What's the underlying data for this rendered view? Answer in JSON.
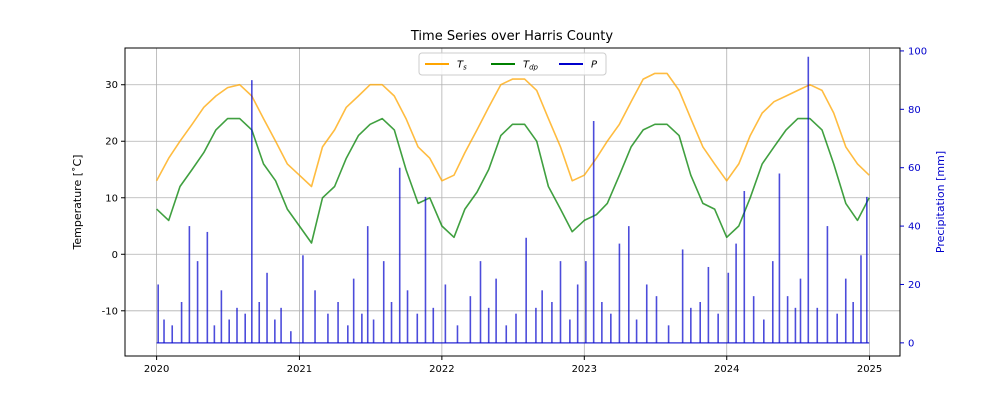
{
  "chart_data": {
    "type": "line",
    "title": "Time Series over Harris County",
    "xlabel": "",
    "ylabel": "Temperature [$^\\circ$C]",
    "ylabel_display": "Temperature [˚C]",
    "y2label": "Precipitation [mm]",
    "xlim": [
      "2019-10-12",
      "2025-03-20"
    ],
    "ylim": [
      -18,
      36.5
    ],
    "y2lim": [
      -4.5,
      101
    ],
    "x_ticks": [
      "2020",
      "2021",
      "2022",
      "2023",
      "2024",
      "2025"
    ],
    "y_ticks": [
      -10,
      0,
      10,
      20,
      30
    ],
    "y2_ticks": [
      0,
      20,
      40,
      60,
      80,
      100
    ],
    "grid": true,
    "legend_position": "top-center",
    "legend": [
      {
        "label": "T",
        "sub": "s",
        "color": "#FFA500"
      },
      {
        "label": "T",
        "sub": "dp",
        "color": "#008000"
      },
      {
        "label": "P",
        "sub": "",
        "color": "#0000CC"
      }
    ],
    "series": [
      {
        "name": "T_s",
        "axis": "left",
        "color": "#FFA500",
        "opacity": 0.75,
        "x": [
          "2020-01-01",
          "2020-02-01",
          "2020-03-01",
          "2020-04-01",
          "2020-05-01",
          "2020-06-01",
          "2020-07-01",
          "2020-08-01",
          "2020-09-01",
          "2020-10-01",
          "2020-11-01",
          "2020-12-01",
          "2021-01-01",
          "2021-02-01",
          "2021-03-01",
          "2021-04-01",
          "2021-05-01",
          "2021-06-01",
          "2021-07-01",
          "2021-08-01",
          "2021-09-01",
          "2021-10-01",
          "2021-11-01",
          "2021-12-01",
          "2022-01-01",
          "2022-02-01",
          "2022-03-01",
          "2022-04-01",
          "2022-05-01",
          "2022-06-01",
          "2022-07-01",
          "2022-08-01",
          "2022-09-01",
          "2022-10-01",
          "2022-11-01",
          "2022-12-01",
          "2023-01-01",
          "2023-02-01",
          "2023-03-01",
          "2023-04-01",
          "2023-05-01",
          "2023-06-01",
          "2023-07-01",
          "2023-08-01",
          "2023-09-01",
          "2023-10-01",
          "2023-11-01",
          "2023-12-01",
          "2024-01-01",
          "2024-02-01",
          "2024-03-01",
          "2024-04-01",
          "2024-05-01",
          "2024-06-01",
          "2024-07-01",
          "2024-08-01",
          "2024-09-01",
          "2024-10-01",
          "2024-11-01",
          "2024-12-01",
          "2024-12-31"
        ],
        "values": [
          13,
          17,
          20,
          23,
          26,
          28,
          29.5,
          30,
          28,
          24,
          20,
          16,
          14,
          12,
          19,
          22,
          26,
          28,
          30,
          30,
          28,
          24,
          19,
          17,
          13,
          14,
          18,
          22,
          26,
          30,
          31,
          31,
          29,
          24,
          19,
          13,
          14,
          17,
          20,
          23,
          27,
          31,
          32,
          32,
          29,
          24,
          19,
          16,
          13,
          16,
          21,
          25,
          27,
          28,
          29,
          30,
          29,
          25,
          19,
          16,
          14
        ]
      },
      {
        "name": "T_dp",
        "axis": "left",
        "color": "#008000",
        "opacity": 0.75,
        "x": [
          "2020-01-01",
          "2020-02-01",
          "2020-03-01",
          "2020-04-01",
          "2020-05-01",
          "2020-06-01",
          "2020-07-01",
          "2020-08-01",
          "2020-09-01",
          "2020-10-01",
          "2020-11-01",
          "2020-12-01",
          "2021-01-01",
          "2021-02-01",
          "2021-03-01",
          "2021-04-01",
          "2021-05-01",
          "2021-06-01",
          "2021-07-01",
          "2021-08-01",
          "2021-09-01",
          "2021-10-01",
          "2021-11-01",
          "2021-12-01",
          "2022-01-01",
          "2022-02-01",
          "2022-03-01",
          "2022-04-01",
          "2022-05-01",
          "2022-06-01",
          "2022-07-01",
          "2022-08-01",
          "2022-09-01",
          "2022-10-01",
          "2022-11-01",
          "2022-12-01",
          "2023-01-01",
          "2023-02-01",
          "2023-03-01",
          "2023-04-01",
          "2023-05-01",
          "2023-06-01",
          "2023-07-01",
          "2023-08-01",
          "2023-09-01",
          "2023-10-01",
          "2023-11-01",
          "2023-12-01",
          "2024-01-01",
          "2024-02-01",
          "2024-03-01",
          "2024-04-01",
          "2024-05-01",
          "2024-06-01",
          "2024-07-01",
          "2024-08-01",
          "2024-09-01",
          "2024-10-01",
          "2024-11-01",
          "2024-12-01",
          "2024-12-31"
        ],
        "values": [
          8,
          6,
          12,
          15,
          18,
          22,
          24,
          24,
          22,
          16,
          13,
          8,
          5,
          2,
          10,
          12,
          17,
          21,
          23,
          24,
          22,
          15,
          9,
          10,
          5,
          3,
          8,
          11,
          15,
          21,
          23,
          23,
          20,
          12,
          8,
          4,
          6,
          7,
          9,
          14,
          19,
          22,
          23,
          23,
          21,
          14,
          9,
          8,
          3,
          5,
          10,
          16,
          19,
          22,
          24,
          24,
          22,
          16,
          9,
          6,
          10
        ]
      },
      {
        "name": "P",
        "axis": "right",
        "color": "#0000CC",
        "opacity": 0.7,
        "baseline": 0,
        "x": [
          "2020-01-05",
          "2020-01-20",
          "2020-02-10",
          "2020-03-05",
          "2020-03-25",
          "2020-04-15",
          "2020-05-10",
          "2020-05-28",
          "2020-06-15",
          "2020-07-05",
          "2020-07-25",
          "2020-08-15",
          "2020-09-01",
          "2020-09-20",
          "2020-10-10",
          "2020-10-30",
          "2020-11-15",
          "2020-12-10",
          "2021-01-10",
          "2021-02-10",
          "2021-03-15",
          "2021-04-10",
          "2021-05-05",
          "2021-05-20",
          "2021-06-10",
          "2021-06-25",
          "2021-07-10",
          "2021-08-05",
          "2021-08-25",
          "2021-09-15",
          "2021-10-05",
          "2021-10-30",
          "2021-11-20",
          "2021-12-10",
          "2022-01-10",
          "2022-02-10",
          "2022-03-15",
          "2022-04-10",
          "2022-05-01",
          "2022-05-20",
          "2022-06-15",
          "2022-07-10",
          "2022-08-05",
          "2022-08-30",
          "2022-09-15",
          "2022-10-10",
          "2022-11-01",
          "2022-11-25",
          "2022-12-15",
          "2023-01-05",
          "2023-01-25",
          "2023-02-15",
          "2023-03-10",
          "2023-04-01",
          "2023-04-25",
          "2023-05-15",
          "2023-06-10",
          "2023-07-05",
          "2023-08-05",
          "2023-09-10",
          "2023-10-01",
          "2023-10-25",
          "2023-11-15",
          "2023-12-10",
          "2024-01-05",
          "2024-01-25",
          "2024-02-15",
          "2024-03-10",
          "2024-04-05",
          "2024-04-28",
          "2024-05-15",
          "2024-06-05",
          "2024-06-25",
          "2024-07-08",
          "2024-07-28",
          "2024-08-20",
          "2024-09-15",
          "2024-10-10",
          "2024-11-01",
          "2024-11-20",
          "2024-12-10",
          "2024-12-25"
        ],
        "values": [
          20,
          8,
          6,
          14,
          40,
          28,
          38,
          6,
          18,
          8,
          12,
          10,
          90,
          14,
          24,
          8,
          12,
          4,
          30,
          18,
          10,
          14,
          6,
          22,
          10,
          40,
          8,
          28,
          14,
          60,
          18,
          10,
          50,
          12,
          20,
          6,
          16,
          28,
          12,
          22,
          6,
          10,
          36,
          12,
          18,
          14,
          28,
          8,
          20,
          28,
          76,
          14,
          10,
          34,
          40,
          8,
          20,
          16,
          6,
          32,
          12,
          14,
          26,
          10,
          24,
          34,
          52,
          16,
          8,
          28,
          58,
          16,
          12,
          22,
          98,
          12,
          40,
          10,
          22,
          14,
          30,
          50
        ]
      }
    ]
  }
}
